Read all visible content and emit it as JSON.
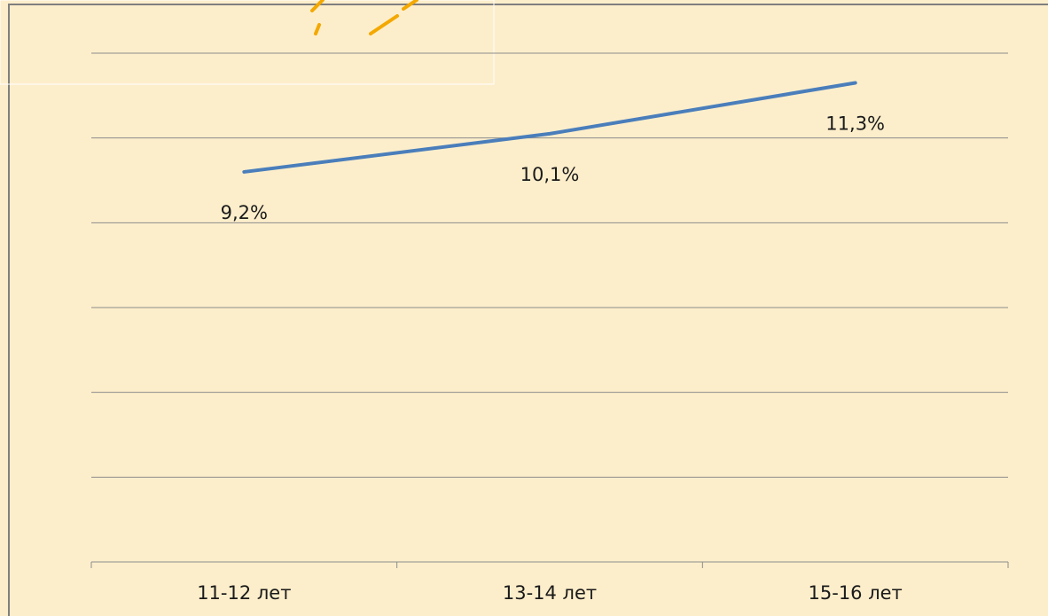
{
  "chart_data": {
    "type": "line",
    "categories": [
      "11-12 лет",
      "13-14 лет",
      "15-16 лет"
    ],
    "series": [
      {
        "name": null,
        "color": "#4a7ebb",
        "values": [
          9.2,
          10.1,
          11.3
        ],
        "value_labels": [
          "9,2%",
          "10,1%",
          "11,3%"
        ]
      }
    ],
    "ylim": [
      0,
      12
    ],
    "yticks": [
      0,
      2,
      4,
      6,
      8,
      10,
      12
    ],
    "grid": true
  }
}
